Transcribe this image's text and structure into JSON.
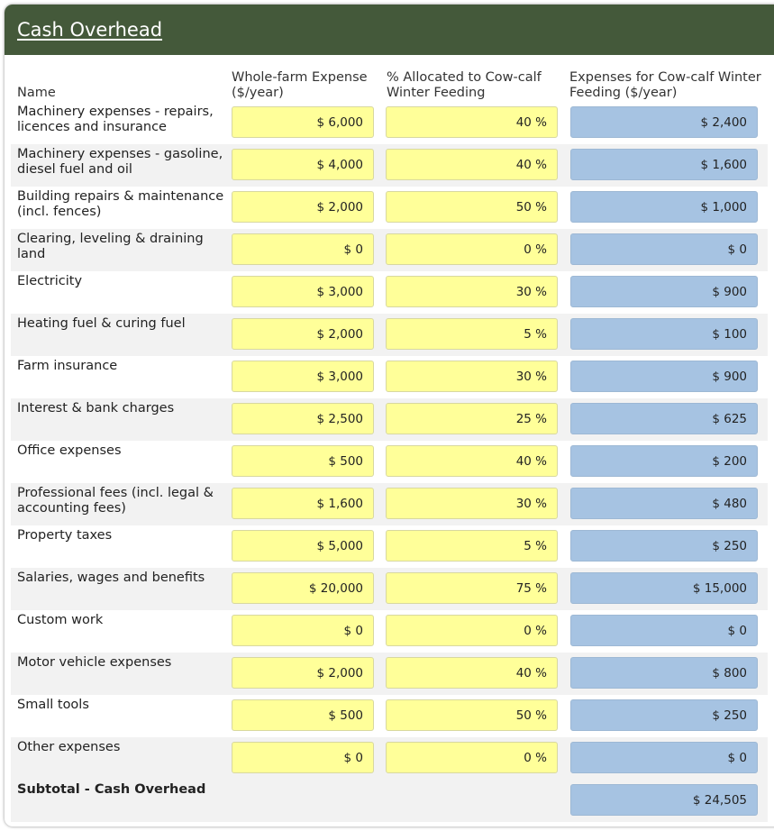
{
  "header": {
    "title": "Cash Overhead"
  },
  "columns": {
    "name": "Name",
    "whole_farm": "Whole-farm Expense ($/year)",
    "allocated": "% Allocated to Cow-calf Winter Feeding",
    "expenses": "Expenses for Cow-calf Winter Feeding ($/year)"
  },
  "rows": [
    {
      "name": "Machinery expenses - repairs, licences and insurance",
      "whole_farm": "$ 6,000",
      "pct": "40 %",
      "expense": "$ 2,400"
    },
    {
      "name": "Machinery expenses - gasoline, diesel fuel and oil",
      "whole_farm": "$ 4,000",
      "pct": "40 %",
      "expense": "$ 1,600"
    },
    {
      "name": "Building repairs & maintenance (incl. fences)",
      "whole_farm": "$ 2,000",
      "pct": "50 %",
      "expense": "$ 1,000"
    },
    {
      "name": "Clearing, leveling & draining land",
      "whole_farm": "$ 0",
      "pct": "0 %",
      "expense": "$ 0"
    },
    {
      "name": "Electricity",
      "whole_farm": "$ 3,000",
      "pct": "30 %",
      "expense": "$ 900"
    },
    {
      "name": "Heating fuel & curing fuel",
      "whole_farm": "$ 2,000",
      "pct": "5 %",
      "expense": "$ 100"
    },
    {
      "name": "Farm insurance",
      "whole_farm": "$ 3,000",
      "pct": "30 %",
      "expense": "$ 900"
    },
    {
      "name": "Interest & bank charges",
      "whole_farm": "$ 2,500",
      "pct": "25 %",
      "expense": "$ 625"
    },
    {
      "name": "Office expenses",
      "whole_farm": "$ 500",
      "pct": "40 %",
      "expense": "$ 200"
    },
    {
      "name": "Professional fees (incl. legal & accounting fees)",
      "whole_farm": "$ 1,600",
      "pct": "30 %",
      "expense": "$ 480"
    },
    {
      "name": "Property taxes",
      "whole_farm": "$ 5,000",
      "pct": "5 %",
      "expense": "$ 250"
    },
    {
      "name": "Salaries, wages and benefits",
      "whole_farm": "$ 20,000",
      "pct": "75 %",
      "expense": "$ 15,000"
    },
    {
      "name": "Custom work",
      "whole_farm": "$ 0",
      "pct": "0 %",
      "expense": "$ 0"
    },
    {
      "name": "Motor vehicle expenses",
      "whole_farm": "$ 2,000",
      "pct": "40 %",
      "expense": "$ 800"
    },
    {
      "name": "Small tools",
      "whole_farm": "$ 500",
      "pct": "50 %",
      "expense": "$ 250"
    },
    {
      "name": "Other expenses",
      "whole_farm": "$ 0",
      "pct": "0 %",
      "expense": "$ 0"
    }
  ],
  "subtotal": {
    "label": "Subtotal - Cash Overhead",
    "value": "$ 24,505"
  },
  "colors": {
    "header_bg": "#44593a",
    "input_bg": "#ffff99",
    "output_bg": "#a6c3e2",
    "row_shade": "#f2f2f2"
  }
}
